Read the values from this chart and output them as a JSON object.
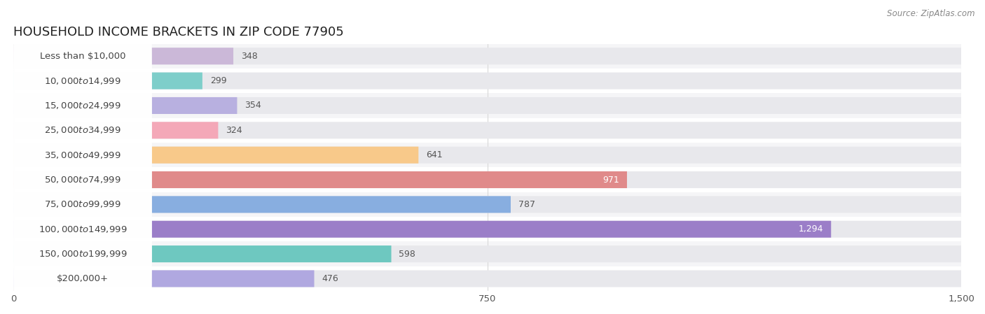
{
  "title": "HOUSEHOLD INCOME BRACKETS IN ZIP CODE 77905",
  "source": "Source: ZipAtlas.com",
  "categories": [
    "Less than $10,000",
    "$10,000 to $14,999",
    "$15,000 to $24,999",
    "$25,000 to $34,999",
    "$35,000 to $49,999",
    "$50,000 to $74,999",
    "$75,000 to $99,999",
    "$100,000 to $149,999",
    "$150,000 to $199,999",
    "$200,000+"
  ],
  "values": [
    348,
    299,
    354,
    324,
    641,
    971,
    787,
    1294,
    598,
    476
  ],
  "bar_colors": [
    "#cbb8d8",
    "#7ececa",
    "#b8b0e0",
    "#f4a8b8",
    "#f8c98a",
    "#e08a8a",
    "#88aee0",
    "#9b7ec8",
    "#6ec8c0",
    "#b0a8e0"
  ],
  "bar_bg_color": "#e8e8ec",
  "background_color": "#ffffff",
  "xlim": [
    0,
    1500
  ],
  "xticks": [
    0,
    750,
    1500
  ],
  "title_fontsize": 13,
  "label_fontsize": 9.5,
  "value_fontsize": 9,
  "bar_height": 0.68,
  "row_bg_colors": [
    "#f5f5f7",
    "#ffffff"
  ],
  "grid_color": "#d8d8d8",
  "label_box_color": "#ffffff",
  "label_text_color": "#444444",
  "value_label_dark": "#555555",
  "value_label_light": "#ffffff"
}
